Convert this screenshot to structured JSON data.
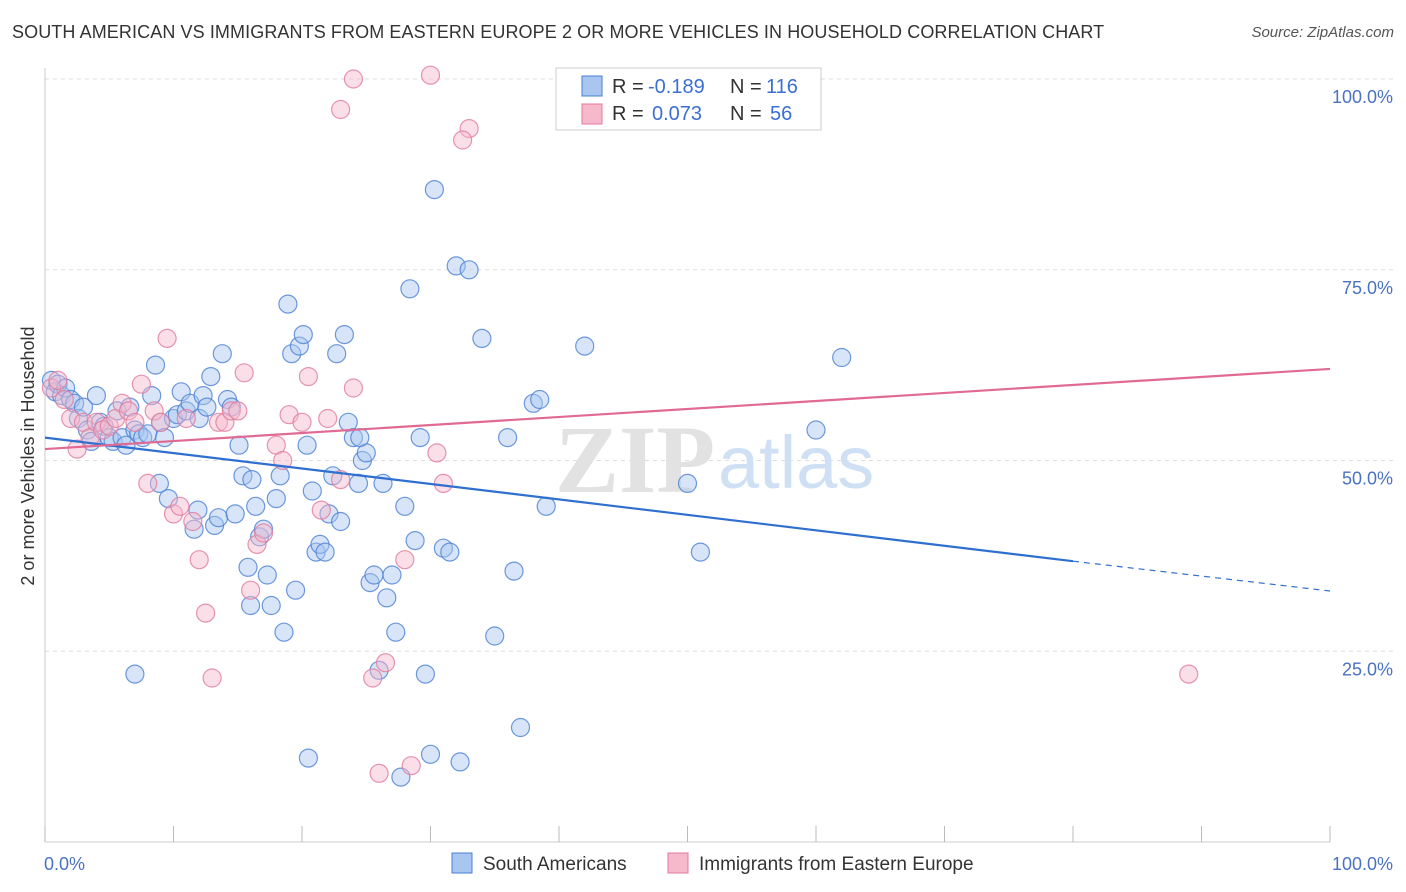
{
  "title": "SOUTH AMERICAN VS IMMIGRANTS FROM EASTERN EUROPE 2 OR MORE VEHICLES IN HOUSEHOLD CORRELATION CHART",
  "source": "Source: ZipAtlas.com",
  "watermark": {
    "zip": "ZIP",
    "atlas": "atlas"
  },
  "colors": {
    "blue_fill": "#a8c6f0",
    "blue_stroke": "#4a7fd4",
    "blue_line": "#2f6fd0",
    "pink_fill": "#f6b8cb",
    "pink_stroke": "#e07a9c",
    "pink_line": "#e06a92",
    "grid": "#dddddd",
    "tick_text": "#4a72c4"
  },
  "legend": {
    "rows": [
      {
        "r_label": "R = ",
        "r_value": "-0.189",
        "n_label": "N = ",
        "n_value": "116"
      },
      {
        "r_label": "R = ",
        "r_value": "0.073",
        "n_label": "N = ",
        "n_value": "56"
      }
    ]
  },
  "chart_data": {
    "type": "scatter",
    "ylabel": "2 or more Vehicles in Household",
    "xlim": [
      0,
      100
    ],
    "ylim": [
      0,
      100
    ],
    "x_tick_labels": {
      "left": "0.0%",
      "right": "100.0%"
    },
    "y_ticks": [
      {
        "value": 25,
        "label": "25.0%"
      },
      {
        "value": 50,
        "label": "50.0%"
      },
      {
        "value": 75,
        "label": "75.0%"
      },
      {
        "value": 100,
        "label": "100.0%"
      }
    ],
    "grid": true,
    "legend_position": "top-center",
    "series": [
      {
        "name": "South Americans",
        "color": "#a8c6f0",
        "trend": {
          "x0": 0,
          "y0": 53.0,
          "x1": 80,
          "y1": 36.8,
          "dash_to_x": 100,
          "dash_to_y": 32.9
        },
        "points": [
          [
            0.5,
            60.5
          ],
          [
            0.8,
            59.0
          ],
          [
            1.0,
            60.0
          ],
          [
            1.3,
            58.5
          ],
          [
            1.6,
            59.5
          ],
          [
            2.0,
            58.0
          ],
          [
            2.3,
            57.5
          ],
          [
            2.6,
            55.5
          ],
          [
            3.0,
            57.0
          ],
          [
            3.3,
            54.0
          ],
          [
            3.6,
            52.5
          ],
          [
            4.0,
            58.5
          ],
          [
            4.3,
            55.0
          ],
          [
            4.6,
            54.5
          ],
          [
            5.0,
            53.0
          ],
          [
            5.3,
            52.5
          ],
          [
            5.6,
            56.5
          ],
          [
            6.0,
            53.0
          ],
          [
            6.3,
            52.0
          ],
          [
            6.6,
            57.0
          ],
          [
            7.0,
            54.0
          ],
          [
            7.3,
            53.5
          ],
          [
            7.6,
            53.0
          ],
          [
            8.0,
            53.5
          ],
          [
            8.3,
            58.5
          ],
          [
            8.6,
            62.5
          ],
          [
            8.9,
            47.0
          ],
          [
            9.0,
            55.0
          ],
          [
            9.3,
            53.0
          ],
          [
            9.6,
            45.0
          ],
          [
            10.0,
            55.5
          ],
          [
            10.3,
            56.0
          ],
          [
            10.6,
            59.0
          ],
          [
            11.0,
            56.5
          ],
          [
            11.3,
            57.5
          ],
          [
            11.6,
            41.0
          ],
          [
            11.9,
            43.5
          ],
          [
            12.0,
            55.5
          ],
          [
            12.3,
            58.5
          ],
          [
            12.6,
            57.0
          ],
          [
            12.9,
            61.0
          ],
          [
            13.2,
            41.5
          ],
          [
            13.5,
            42.5
          ],
          [
            13.8,
            64.0
          ],
          [
            14.2,
            58.0
          ],
          [
            14.5,
            57.0
          ],
          [
            14.8,
            43.0
          ],
          [
            15.1,
            52.0
          ],
          [
            15.4,
            48.0
          ],
          [
            15.8,
            36.0
          ],
          [
            16.1,
            47.5
          ],
          [
            16.4,
            44.0
          ],
          [
            16.7,
            40.0
          ],
          [
            17.0,
            41.0
          ],
          [
            17.3,
            35.0
          ],
          [
            17.6,
            31.0
          ],
          [
            18.0,
            45.0
          ],
          [
            18.3,
            48.0
          ],
          [
            18.6,
            27.5
          ],
          [
            18.9,
            70.5
          ],
          [
            19.2,
            64.0
          ],
          [
            19.5,
            33.0
          ],
          [
            19.8,
            65.0
          ],
          [
            20.1,
            66.5
          ],
          [
            20.4,
            52.0
          ],
          [
            20.8,
            46.0
          ],
          [
            21.1,
            38.0
          ],
          [
            21.4,
            39.0
          ],
          [
            21.8,
            38.0
          ],
          [
            22.1,
            43.0
          ],
          [
            22.4,
            48.0
          ],
          [
            22.7,
            64.0
          ],
          [
            23.0,
            42.0
          ],
          [
            23.3,
            66.5
          ],
          [
            23.6,
            55.0
          ],
          [
            24.0,
            53.0
          ],
          [
            24.4,
            47.0
          ],
          [
            24.7,
            50.0
          ],
          [
            25.0,
            51.0
          ],
          [
            25.3,
            34.0
          ],
          [
            25.6,
            35.0
          ],
          [
            26.0,
            22.5
          ],
          [
            26.3,
            47.0
          ],
          [
            26.6,
            32.0
          ],
          [
            27.0,
            35.0
          ],
          [
            27.3,
            27.5
          ],
          [
            27.7,
            8.5
          ],
          [
            28.0,
            44.0
          ],
          [
            28.4,
            72.5
          ],
          [
            28.8,
            39.5
          ],
          [
            29.2,
            53.0
          ],
          [
            29.6,
            22.0
          ],
          [
            30.0,
            11.5
          ],
          [
            30.3,
            85.5
          ],
          [
            31.0,
            38.5
          ],
          [
            31.5,
            38.0
          ],
          [
            32.0,
            75.5
          ],
          [
            32.3,
            10.5
          ],
          [
            33.0,
            75.0
          ],
          [
            34.0,
            66.0
          ],
          [
            35.0,
            27.0
          ],
          [
            36.0,
            53.0
          ],
          [
            36.5,
            35.5
          ],
          [
            37.0,
            15.0
          ],
          [
            38.0,
            57.5
          ],
          [
            38.5,
            58.0
          ],
          [
            39.0,
            44.0
          ],
          [
            42.0,
            65.0
          ],
          [
            50.0,
            47.0
          ],
          [
            51.0,
            38.0
          ],
          [
            60.0,
            54.0
          ],
          [
            62.0,
            63.5
          ],
          [
            20.5,
            11.0
          ],
          [
            16.0,
            31.0
          ],
          [
            7.0,
            22.0
          ],
          [
            24.5,
            53.0
          ]
        ]
      },
      {
        "name": "Immigrants from Eastern Europe",
        "color": "#f6b8cb",
        "trend": {
          "x0": 0,
          "y0": 51.5,
          "x1": 100,
          "y1": 62.0
        },
        "points": [
          [
            0.5,
            59.5
          ],
          [
            1.0,
            60.5
          ],
          [
            1.5,
            58.0
          ],
          [
            2.0,
            55.5
          ],
          [
            2.5,
            51.5
          ],
          [
            3.0,
            55.0
          ],
          [
            3.5,
            53.0
          ],
          [
            4.0,
            55.0
          ],
          [
            4.5,
            54.0
          ],
          [
            5.0,
            54.5
          ],
          [
            5.5,
            55.5
          ],
          [
            6.0,
            57.5
          ],
          [
            6.5,
            56.5
          ],
          [
            7.0,
            55.0
          ],
          [
            7.5,
            60.0
          ],
          [
            8.0,
            47.0
          ],
          [
            8.5,
            56.5
          ],
          [
            9.0,
            55.0
          ],
          [
            9.5,
            66.0
          ],
          [
            10.0,
            43.0
          ],
          [
            10.5,
            44.0
          ],
          [
            11.0,
            55.5
          ],
          [
            11.5,
            42.0
          ],
          [
            12.0,
            37.0
          ],
          [
            12.5,
            30.0
          ],
          [
            13.0,
            21.5
          ],
          [
            13.5,
            55.0
          ],
          [
            14.0,
            55.0
          ],
          [
            14.5,
            56.5
          ],
          [
            15.0,
            56.5
          ],
          [
            15.5,
            61.5
          ],
          [
            16.0,
            33.0
          ],
          [
            16.5,
            39.0
          ],
          [
            17.0,
            40.5
          ],
          [
            18.0,
            52.0
          ],
          [
            18.5,
            50.0
          ],
          [
            19.0,
            56.0
          ],
          [
            20.0,
            55.0
          ],
          [
            20.5,
            61.0
          ],
          [
            21.5,
            43.5
          ],
          [
            22.0,
            55.5
          ],
          [
            23.0,
            47.5
          ],
          [
            24.0,
            59.5
          ],
          [
            25.5,
            21.5
          ],
          [
            26.0,
            9.0
          ],
          [
            26.5,
            23.5
          ],
          [
            28.0,
            37.0
          ],
          [
            28.5,
            10.0
          ],
          [
            30.5,
            51.0
          ],
          [
            31.0,
            47.0
          ],
          [
            33.0,
            93.5
          ],
          [
            32.5,
            92.0
          ],
          [
            30.0,
            100.5
          ],
          [
            24.0,
            100.0
          ],
          [
            23.0,
            96.0
          ],
          [
            89.0,
            22.0
          ]
        ]
      }
    ]
  },
  "bottom_legend": [
    "South Americans",
    "Immigrants from Eastern Europe"
  ]
}
